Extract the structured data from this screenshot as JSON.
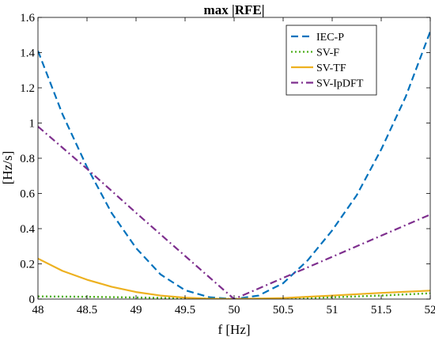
{
  "chart_data": {
    "type": "line",
    "title": "max |RFE|",
    "xlabel": "f [Hz]",
    "ylabel": "[Hz/s]",
    "xlim": [
      48,
      52
    ],
    "ylim": [
      0,
      1.6
    ],
    "x_ticks": [
      "48",
      "48.5",
      "49",
      "49.5",
      "50",
      "50.5",
      "51",
      "51.5",
      "52"
    ],
    "y_ticks": [
      "0",
      "0.2",
      "0.4",
      "0.6",
      "0.8",
      "1",
      "1.2",
      "1.4",
      "1.6"
    ],
    "legend_position": "top-right",
    "grid": false,
    "series": [
      {
        "name": "IEC-P",
        "color": "#0072BD",
        "dash": "dashed",
        "x": [
          48,
          48.25,
          48.5,
          48.75,
          49,
          49.25,
          49.5,
          49.75,
          50,
          50.25,
          50.5,
          50.75,
          51,
          51.25,
          51.5,
          51.75,
          52
        ],
        "y": [
          1.41,
          1.05,
          0.75,
          0.49,
          0.29,
          0.14,
          0.05,
          0.01,
          0.0,
          0.02,
          0.09,
          0.22,
          0.39,
          0.59,
          0.85,
          1.15,
          1.52
        ]
      },
      {
        "name": "SV-F",
        "color": "#4DAE1A",
        "dash": "dotted",
        "x": [
          48,
          48.5,
          49,
          49.5,
          50,
          50.5,
          51,
          51.5,
          52
        ],
        "y": [
          0.015,
          0.013,
          0.009,
          0.004,
          0.0,
          0.003,
          0.01,
          0.02,
          0.033
        ]
      },
      {
        "name": "SV-TF",
        "color": "#EDB120",
        "dash": "solid",
        "x": [
          48,
          48.25,
          48.5,
          48.75,
          49,
          49.25,
          49.5,
          49.75,
          50,
          50.5,
          51,
          51.5,
          52
        ],
        "y": [
          0.23,
          0.16,
          0.11,
          0.07,
          0.04,
          0.02,
          0.008,
          0.002,
          0.0,
          0.006,
          0.02,
          0.035,
          0.048
        ]
      },
      {
        "name": "SV-IpDFT",
        "color": "#7E2F8E",
        "dash": "dashdot",
        "x": [
          48,
          48.5,
          49,
          49.5,
          50,
          50.5,
          51,
          51.5,
          52
        ],
        "y": [
          0.98,
          0.74,
          0.49,
          0.245,
          0.0,
          0.12,
          0.24,
          0.36,
          0.48
        ]
      }
    ]
  }
}
